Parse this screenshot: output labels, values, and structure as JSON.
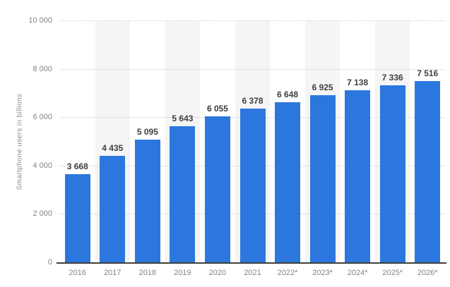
{
  "chart_data": {
    "type": "bar",
    "categories": [
      "2016",
      "2017",
      "2018",
      "2019",
      "2020",
      "2021",
      "2022*",
      "2023*",
      "2024*",
      "2025*",
      "2026*"
    ],
    "values": [
      3668,
      4435,
      5095,
      5643,
      6055,
      6378,
      6648,
      6925,
      7138,
      7336,
      7516
    ],
    "value_labels": [
      "3 668",
      "4 435",
      "5 095",
      "5 643",
      "6 055",
      "6 378",
      "6 648",
      "6 925",
      "7 138",
      "7 336",
      "7 516"
    ],
    "xlabel": "",
    "ylabel": "Smartphone users in billions",
    "ylim": [
      0,
      10000
    ],
    "yticks": [
      0,
      2000,
      4000,
      6000,
      8000,
      10000
    ],
    "ytick_labels": [
      "0",
      "2 000",
      "4 000",
      "6 000",
      "8 000",
      "10 000"
    ],
    "grid": true,
    "legend": false,
    "striped_columns": [
      1,
      3,
      5,
      7,
      9
    ],
    "colors": {
      "bar": "#2c77dd",
      "stripe": "#f5f5f5",
      "gridline": "#cccccc",
      "axis_line": "#404040",
      "value_label": "#3f3f3f",
      "tick_label": "#848484"
    }
  }
}
